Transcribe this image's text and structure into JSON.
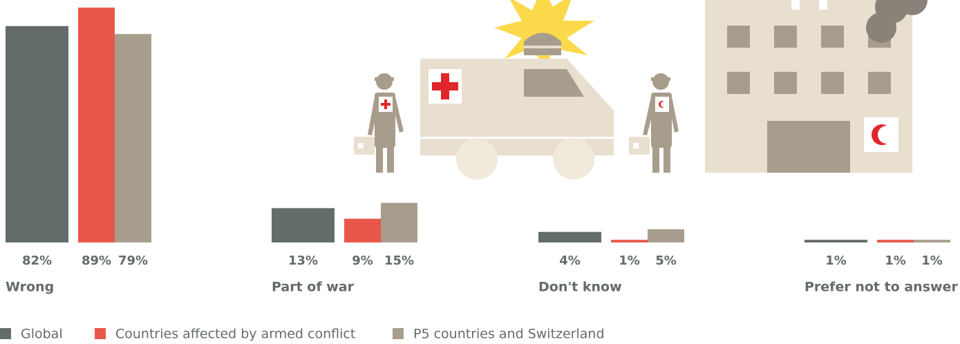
{
  "chart_data": {
    "type": "bar",
    "categories": [
      "Wrong",
      "Part of war",
      "Don't know",
      "Prefer not to answer"
    ],
    "series": [
      {
        "name": "Global",
        "color": "#636b6b",
        "values": [
          82,
          13,
          4,
          1
        ],
        "value_labels": [
          "82%",
          "13%",
          "4%",
          "1%"
        ]
      },
      {
        "name": "Countries affected by armed conflict",
        "color": "#e8574a",
        "values": [
          89,
          9,
          1,
          1
        ],
        "value_labels": [
          "89%",
          "9%",
          "1%",
          "1%"
        ]
      },
      {
        "name": "P5 countries and Switzerland",
        "color": "#a89d8c",
        "values": [
          79,
          15,
          5,
          1
        ],
        "value_labels": [
          "79%",
          "15%",
          "5%",
          "1%"
        ]
      }
    ]
  }
}
